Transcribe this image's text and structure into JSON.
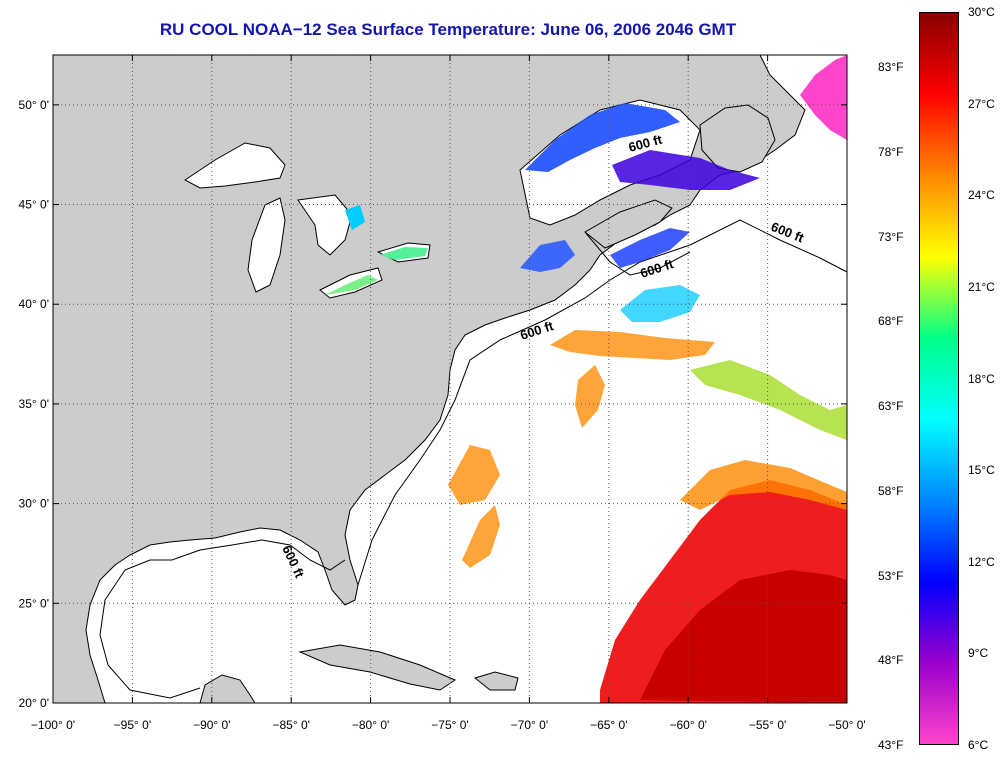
{
  "title": "RU COOL  NOAA−12  Sea Surface Temperature:  June 06, 2006 2046 GMT",
  "map": {
    "lon_range": [
      -100,
      -50
    ],
    "lat_range": [
      20,
      52.5
    ],
    "lat_labels": [
      "50° 0'",
      "45° 0'",
      "40° 0'",
      "35° 0'",
      "30° 0'",
      "25° 0'",
      "20° 0'"
    ],
    "lat_values": [
      50,
      45,
      40,
      35,
      30,
      25,
      20
    ],
    "lon_labels": [
      "−100° 0'",
      "−95° 0'",
      "−90° 0'",
      "−85° 0'",
      "−80° 0'",
      "−75° 0'",
      "−70° 0'",
      "−65° 0'",
      "−60° 0'",
      "−55° 0'",
      "−50° 0'"
    ],
    "lon_values": [
      -100,
      -95,
      -90,
      -85,
      -80,
      -75,
      -70,
      -65,
      -60,
      -55,
      -50
    ],
    "contour_labels": [
      "600 ft",
      "600 ft",
      "600 ft",
      "600 ft",
      "600 ft"
    ],
    "land_color": "#cccccc",
    "ocean_color": "#ffffff"
  },
  "colorbar": {
    "fahrenheit_labels": [
      "83°F",
      "78°F",
      "73°F",
      "68°F",
      "63°F",
      "58°F",
      "53°F",
      "48°F",
      "43°F"
    ],
    "celsius_labels": [
      "30°C",
      "27°C",
      "24°C",
      "21°C",
      "18°C",
      "15°C",
      "12°C",
      "9°C",
      "6°C"
    ],
    "stops": [
      "#ff44cc",
      "#9900cc",
      "#0000ff",
      "#0088ff",
      "#00ffff",
      "#00ff88",
      "#ffff00",
      "#ff8800",
      "#ff0000",
      "#880000"
    ]
  }
}
